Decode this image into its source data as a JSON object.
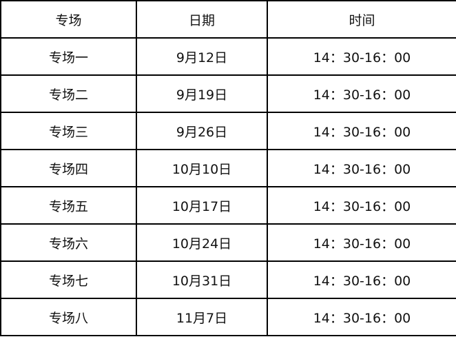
{
  "header": [
    "专场",
    "日期",
    "时间"
  ],
  "rows": [
    [
      "专场一",
      "9月12日",
      "14：30-16：00"
    ],
    [
      "专场二",
      "9月19日",
      "14：30-16：00"
    ],
    [
      "专场三",
      "9月26日",
      "14：30-16：00"
    ],
    [
      "专场四",
      "10月10日",
      "14：30-16：00"
    ],
    [
      "专场五",
      "10月17日",
      "14：30-16：00"
    ],
    [
      "专场六",
      "10月24日",
      "14：30-16：00"
    ],
    [
      "专场七",
      "10月31日",
      "14：30-16：00"
    ],
    [
      "专场八",
      "11月7日",
      "14：30-16：00"
    ]
  ]
}
